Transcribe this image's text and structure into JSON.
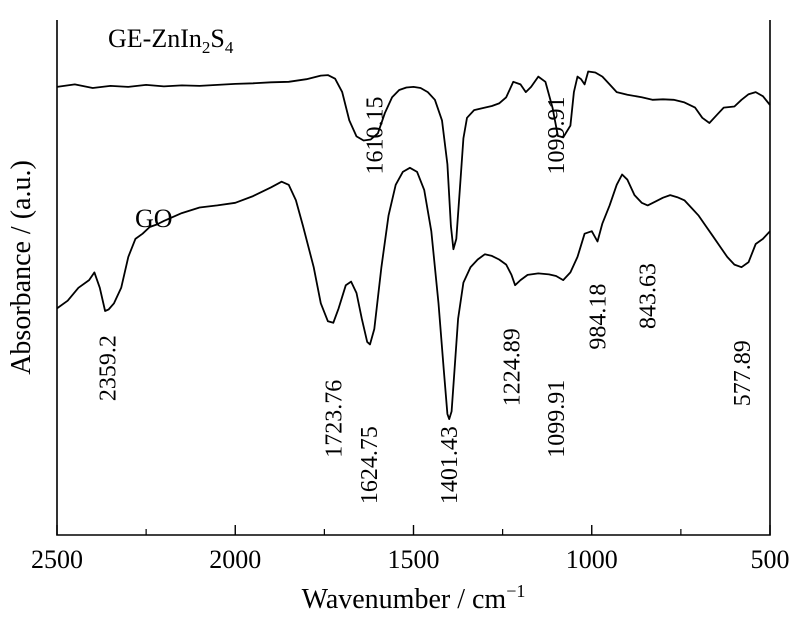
{
  "chart_data": {
    "type": "line",
    "xlabel": "Wavenumber / cm",
    "xlabel_sup": "−1",
    "ylabel": "Absorbance / (a.u.)",
    "xlim": [
      2500,
      500
    ],
    "ylim": [
      0,
      100
    ],
    "x_reversed": true,
    "y_ticks_shown": false,
    "x_ticks": [
      "2500",
      "2000",
      "1500",
      "1000",
      "500"
    ],
    "x_tick_values": [
      2500,
      2000,
      1500,
      1000,
      500
    ],
    "x_minor_step": 250,
    "series": [
      {
        "name": "GE-ZnIn2S4",
        "label_parts": [
          "GE-ZnIn",
          "2",
          "S",
          "4"
        ],
        "points": [
          [
            2500,
            87.0
          ],
          [
            2450,
            87.5
          ],
          [
            2400,
            86.8
          ],
          [
            2350,
            87.2
          ],
          [
            2300,
            87.0
          ],
          [
            2250,
            87.4
          ],
          [
            2200,
            87.1
          ],
          [
            2150,
            87.3
          ],
          [
            2100,
            87.2
          ],
          [
            2050,
            87.4
          ],
          [
            2000,
            87.6
          ],
          [
            1950,
            87.7
          ],
          [
            1900,
            87.9
          ],
          [
            1850,
            88.0
          ],
          [
            1800,
            88.5
          ],
          [
            1760,
            89.2
          ],
          [
            1740,
            89.3
          ],
          [
            1720,
            88.6
          ],
          [
            1700,
            86.0
          ],
          [
            1680,
            80.5
          ],
          [
            1660,
            77.4
          ],
          [
            1640,
            76.6
          ],
          [
            1620,
            76.8
          ],
          [
            1600,
            78.0
          ],
          [
            1580,
            82.0
          ],
          [
            1560,
            85.0
          ],
          [
            1540,
            86.4
          ],
          [
            1520,
            86.9
          ],
          [
            1500,
            87.0
          ],
          [
            1480,
            86.8
          ],
          [
            1460,
            86.0
          ],
          [
            1440,
            84.5
          ],
          [
            1420,
            80.5
          ],
          [
            1405,
            72.0
          ],
          [
            1395,
            60.0
          ],
          [
            1388,
            55.5
          ],
          [
            1380,
            57.5
          ],
          [
            1370,
            67.0
          ],
          [
            1360,
            77.0
          ],
          [
            1350,
            81.0
          ],
          [
            1330,
            82.5
          ],
          [
            1300,
            83.0
          ],
          [
            1280,
            83.3
          ],
          [
            1260,
            83.8
          ],
          [
            1240,
            85.0
          ],
          [
            1220,
            88.0
          ],
          [
            1200,
            87.5
          ],
          [
            1185,
            86.0
          ],
          [
            1170,
            87.0
          ],
          [
            1150,
            89.0
          ],
          [
            1130,
            88.0
          ],
          [
            1110,
            83.0
          ],
          [
            1095,
            77.5
          ],
          [
            1080,
            77.2
          ],
          [
            1060,
            79.5
          ],
          [
            1050,
            86.0
          ],
          [
            1040,
            89.0
          ],
          [
            1030,
            88.5
          ],
          [
            1020,
            87.5
          ],
          [
            1010,
            90.0
          ],
          [
            990,
            89.8
          ],
          [
            970,
            89.0
          ],
          [
            950,
            87.5
          ],
          [
            930,
            86.0
          ],
          [
            900,
            85.5
          ],
          [
            860,
            85.0
          ],
          [
            830,
            84.5
          ],
          [
            800,
            84.6
          ],
          [
            770,
            84.5
          ],
          [
            740,
            84.0
          ],
          [
            710,
            83.0
          ],
          [
            690,
            81.0
          ],
          [
            670,
            80.0
          ],
          [
            650,
            81.5
          ],
          [
            630,
            83.0
          ],
          [
            600,
            83.2
          ],
          [
            580,
            84.5
          ],
          [
            560,
            85.6
          ],
          [
            540,
            86.0
          ],
          [
            520,
            85.2
          ],
          [
            500,
            83.5
          ]
        ]
      },
      {
        "name": "GO",
        "label_parts": [
          "GO"
        ],
        "points": [
          [
            2500,
            44.0
          ],
          [
            2470,
            45.5
          ],
          [
            2440,
            48.0
          ],
          [
            2410,
            49.5
          ],
          [
            2395,
            51.0
          ],
          [
            2380,
            48.0
          ],
          [
            2365,
            43.5
          ],
          [
            2355,
            43.8
          ],
          [
            2340,
            45.0
          ],
          [
            2320,
            48.0
          ],
          [
            2300,
            54.0
          ],
          [
            2280,
            57.5
          ],
          [
            2260,
            58.5
          ],
          [
            2240,
            59.8
          ],
          [
            2220,
            60.3
          ],
          [
            2200,
            61.0
          ],
          [
            2150,
            62.5
          ],
          [
            2100,
            63.6
          ],
          [
            2050,
            64.0
          ],
          [
            2000,
            64.5
          ],
          [
            1950,
            65.8
          ],
          [
            1900,
            67.5
          ],
          [
            1870,
            68.6
          ],
          [
            1850,
            68.0
          ],
          [
            1830,
            65.0
          ],
          [
            1810,
            60.0
          ],
          [
            1780,
            52.0
          ],
          [
            1760,
            45.0
          ],
          [
            1740,
            41.5
          ],
          [
            1725,
            41.2
          ],
          [
            1710,
            44.0
          ],
          [
            1690,
            48.5
          ],
          [
            1675,
            49.2
          ],
          [
            1660,
            47.0
          ],
          [
            1645,
            42.0
          ],
          [
            1630,
            37.5
          ],
          [
            1622,
            37.0
          ],
          [
            1610,
            40.0
          ],
          [
            1590,
            52.0
          ],
          [
            1570,
            62.0
          ],
          [
            1550,
            68.0
          ],
          [
            1530,
            70.5
          ],
          [
            1510,
            71.3
          ],
          [
            1490,
            70.5
          ],
          [
            1470,
            67.0
          ],
          [
            1450,
            59.0
          ],
          [
            1430,
            45.0
          ],
          [
            1415,
            32.0
          ],
          [
            1405,
            23.5
          ],
          [
            1400,
            22.5
          ],
          [
            1393,
            24.0
          ],
          [
            1385,
            32.0
          ],
          [
            1375,
            42.0
          ],
          [
            1360,
            49.0
          ],
          [
            1340,
            52.0
          ],
          [
            1320,
            53.5
          ],
          [
            1300,
            54.5
          ],
          [
            1280,
            54.2
          ],
          [
            1260,
            53.5
          ],
          [
            1240,
            52.5
          ],
          [
            1225,
            50.5
          ],
          [
            1215,
            48.5
          ],
          [
            1200,
            49.5
          ],
          [
            1180,
            50.5
          ],
          [
            1150,
            50.8
          ],
          [
            1120,
            50.6
          ],
          [
            1100,
            50.3
          ],
          [
            1080,
            49.5
          ],
          [
            1060,
            51.0
          ],
          [
            1040,
            54.0
          ],
          [
            1020,
            58.5
          ],
          [
            1000,
            59.0
          ],
          [
            984,
            57.0
          ],
          [
            970,
            60.5
          ],
          [
            950,
            64.0
          ],
          [
            930,
            68.0
          ],
          [
            915,
            70.0
          ],
          [
            900,
            69.0
          ],
          [
            880,
            66.0
          ],
          [
            860,
            64.5
          ],
          [
            843,
            64.0
          ],
          [
            820,
            64.8
          ],
          [
            800,
            65.5
          ],
          [
            780,
            66.0
          ],
          [
            760,
            65.6
          ],
          [
            740,
            65.0
          ],
          [
            720,
            63.5
          ],
          [
            700,
            62.0
          ],
          [
            680,
            60.0
          ],
          [
            660,
            58.0
          ],
          [
            640,
            56.0
          ],
          [
            620,
            54.0
          ],
          [
            600,
            52.5
          ],
          [
            580,
            52.0
          ],
          [
            560,
            53.0
          ],
          [
            540,
            56.5
          ],
          [
            520,
            57.5
          ],
          [
            500,
            59.0
          ]
        ]
      }
    ],
    "annotations": [
      {
        "text": "1610.15",
        "x": 1610,
        "y": 70
      },
      {
        "text": "1099.91",
        "x": 1100,
        "y": 70
      },
      {
        "text": "2359.2",
        "x": 2359,
        "y": 26
      },
      {
        "text": "1723.76",
        "x": 1724,
        "y": 15
      },
      {
        "text": "1624.75",
        "x": 1625,
        "y": 6
      },
      {
        "text": "1401.43",
        "x": 1401,
        "y": 6
      },
      {
        "text": "1224.89",
        "x": 1225,
        "y": 25
      },
      {
        "text": "1099.91",
        "x": 1100,
        "y": 15
      },
      {
        "text": "984.18",
        "x": 984,
        "y": 36
      },
      {
        "text": "843.63",
        "x": 843,
        "y": 40
      },
      {
        "text": "577.89",
        "x": 578,
        "y": 25
      }
    ]
  }
}
